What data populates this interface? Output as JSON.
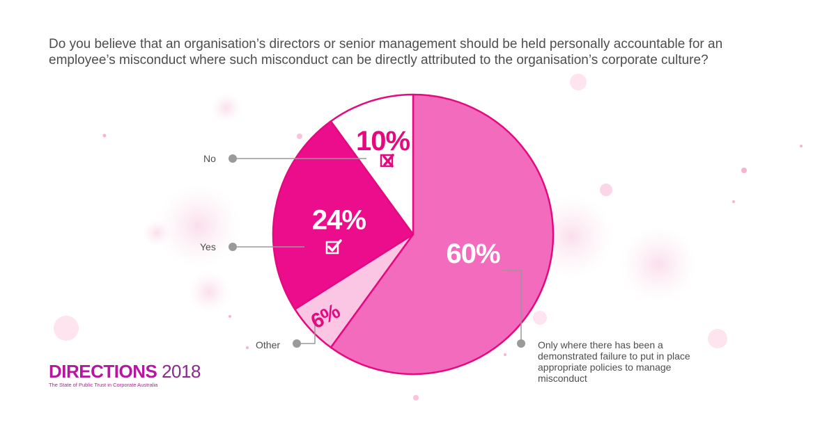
{
  "question": "Do you believe that an organisation’s directors or senior management should be held personally accountable for an employee’s misconduct where such misconduct can be directly attributed to the organisation’s corporate culture?",
  "brand": {
    "name": "DIRECTIONS",
    "year": "2018",
    "subtitle": "The State of Public Trust in Corporate Australia"
  },
  "colors": {
    "only_where": "#f36bbd",
    "other": "#fbc6e4",
    "yes": "#ec0d8d",
    "no": "#ffffff",
    "outline": "#e5097f",
    "leader": "#9a9a9a"
  },
  "chart_data": {
    "type": "pie",
    "title": "",
    "slices": [
      {
        "key": "only_where",
        "label": "Only where there has been a demonstrated failure to put in place appropriate policies to manage misconduct",
        "value": 60,
        "value_label": "60%",
        "color": "#f36bbd",
        "icon": ""
      },
      {
        "key": "other",
        "label": "Other",
        "value": 6,
        "value_label": "6%",
        "color": "#fbc6e4",
        "icon": ""
      },
      {
        "key": "yes",
        "label": "Yes",
        "value": 24,
        "value_label": "24%",
        "color": "#ec0d8d",
        "icon": "checkbox-check-icon"
      },
      {
        "key": "no",
        "label": "No",
        "value": 10,
        "value_label": "10%",
        "color": "#ffffff",
        "icon": "checkbox-cross-icon"
      }
    ]
  }
}
